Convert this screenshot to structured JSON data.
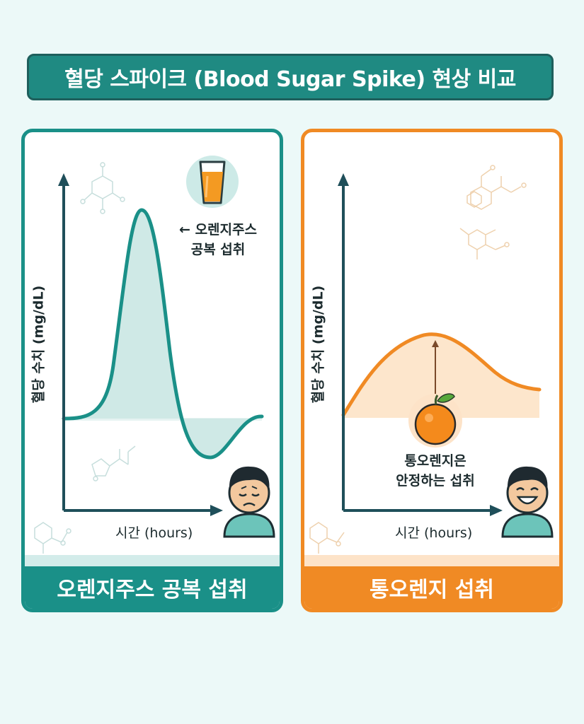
{
  "title": "혈당 스파이크 (Blood Sugar Spike) 현상 비교",
  "left_panel": {
    "y_axis_label": "혈당 수치 (mg/dL)",
    "x_axis_label": "시간 (hours)",
    "annotation_line1": "← 오렌지주스",
    "annotation_line2": "공복 섭취",
    "footer": "오렌지주스 공복 섭취",
    "accent_color": "#1a9088",
    "icons": [
      "orange-juice-glass-icon",
      "sad-person-icon",
      "molecule-icon"
    ]
  },
  "right_panel": {
    "y_axis_label": "혈당 수치 (mg/dL)",
    "x_axis_label": "시간 (hours)",
    "annotation_line1": "통오렌지은",
    "annotation_line2": "안정하는 섭취",
    "footer": "통오렌지 섭취",
    "accent_color": "#f08a24",
    "icons": [
      "orange-fruit-icon",
      "happy-person-icon",
      "molecule-icon"
    ]
  }
}
